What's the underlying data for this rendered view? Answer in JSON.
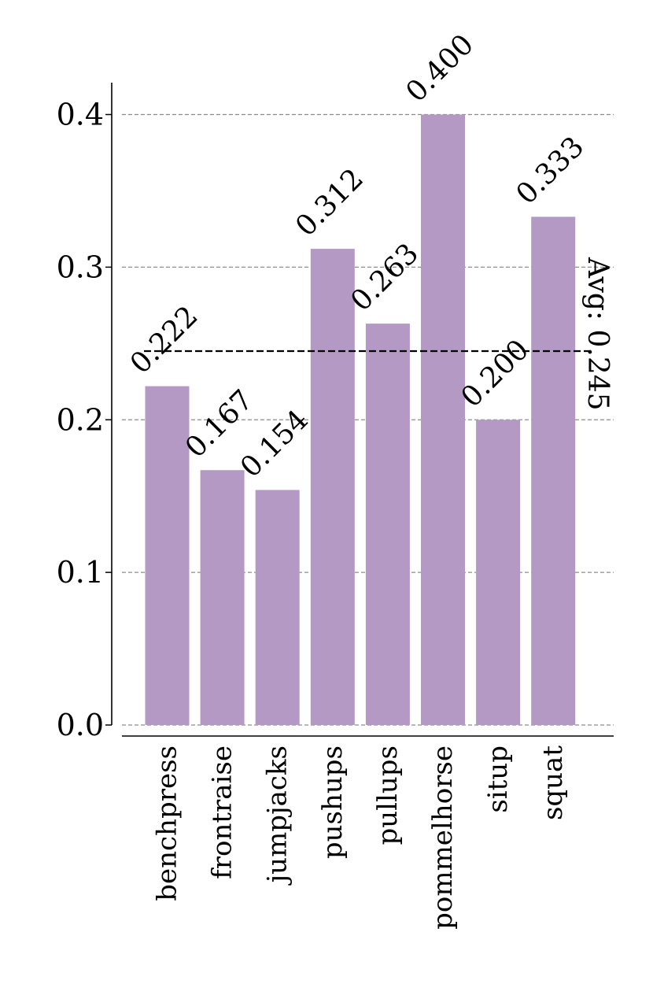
{
  "chart_data": {
    "type": "bar",
    "categories": [
      "benchpress",
      "frontraise",
      "jumpjacks",
      "pushups",
      "pullups",
      "pommelhorse",
      "situp",
      "squat"
    ],
    "values": [
      0.222,
      0.167,
      0.154,
      0.312,
      0.263,
      0.4,
      0.2,
      0.333
    ],
    "value_labels": [
      "0.222",
      "0.167",
      "0.154",
      "0.312",
      "0.263",
      "0.400",
      "0.200",
      "0.333"
    ],
    "ylim": [
      0,
      0.42
    ],
    "yticks": [
      0.0,
      0.1,
      0.2,
      0.3,
      0.4
    ],
    "ytick_labels": [
      "0.0",
      "0.1",
      "0.2",
      "0.3",
      "0.4"
    ],
    "average": 0.245,
    "average_label": "Avg: 0.245",
    "grid": "horizontal dashed",
    "colors": {
      "bar": "#b399c4",
      "grid": "#8c8c8c",
      "average_line": "#000000",
      "axis": "#000000"
    }
  }
}
